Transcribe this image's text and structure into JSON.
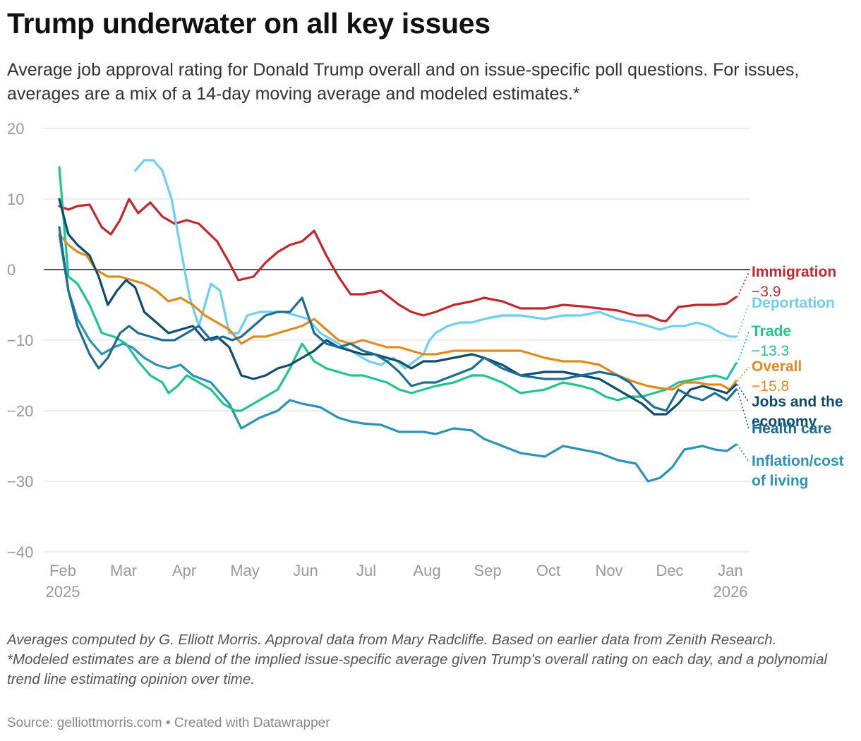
{
  "title": "Trump underwater on all key issues",
  "subtitle": "Average job approval rating for Donald Trump overall and on issue-specific poll questions. For issues, averages are a mix of a 14-day moving average and modeled estimates.*",
  "notes": {
    "line1": "Averages computed by G. Elliott Morris. Approval data from Mary Radcliffe. Based on earlier data from Zenith Research.",
    "line2": "*Modeled estimates are a blend of the implied issue-specific average given Trump's overall rating on each day, and a polynomial trend line estimating opinion over time."
  },
  "source": "Source: gelliottmorris.com • Created with Datawrapper",
  "chart_data": {
    "type": "line",
    "title": "Trump underwater on all key issues",
    "xlabel": "",
    "ylabel": "",
    "ylim": [
      -40,
      20
    ],
    "xlim": [
      0,
      11.2
    ],
    "y_ticks": [
      20,
      10,
      0,
      -10,
      -20,
      -30,
      -40
    ],
    "y_tick_labels": [
      "20",
      "10",
      "0",
      "−10",
      "−20",
      "−30",
      "−40"
    ],
    "x_ticks": [
      {
        "x": 0,
        "label": "Feb",
        "sublabel": "2025"
      },
      {
        "x": 1,
        "label": "Mar"
      },
      {
        "x": 2,
        "label": "Apr"
      },
      {
        "x": 3,
        "label": "May"
      },
      {
        "x": 4,
        "label": "Jun"
      },
      {
        "x": 5,
        "label": "Jul"
      },
      {
        "x": 6,
        "label": "Aug"
      },
      {
        "x": 7,
        "label": "Sep"
      },
      {
        "x": 8,
        "label": "Oct"
      },
      {
        "x": 9,
        "label": "Nov"
      },
      {
        "x": 10,
        "label": "Dec"
      },
      {
        "x": 11,
        "label": "Jan",
        "sublabel": "2026"
      }
    ],
    "x_unit": "months since Feb 1, 2025",
    "series": [
      {
        "name": "Inflation/cost of living",
        "label_lines": [
          "Inflation/cost",
          "of living"
        ],
        "final_value": null,
        "color": "#2a93b7",
        "x": [
          0,
          0.15,
          0.3,
          0.5,
          0.7,
          0.9,
          1.05,
          1.2,
          1.4,
          1.6,
          1.8,
          2.0,
          2.2,
          2.5,
          2.8,
          3.0,
          3.3,
          3.6,
          3.8,
          4.0,
          4.3,
          4.6,
          4.8,
          5.0,
          5.3,
          5.6,
          6.0,
          6.2,
          6.5,
          6.8,
          7.0,
          7.3,
          7.6,
          8.0,
          8.3,
          8.6,
          8.9,
          9.2,
          9.5,
          9.7,
          9.9,
          10.1,
          10.3,
          10.6,
          10.8,
          11.0,
          11.15
        ],
        "y": [
          5,
          -3,
          -7,
          -10,
          -12,
          -11,
          -10.5,
          -11,
          -12.5,
          -13.5,
          -14,
          -13.5,
          -15,
          -16,
          -19,
          -22.5,
          -21,
          -20,
          -18.5,
          -19,
          -19.5,
          -21,
          -21.5,
          -21.8,
          -22,
          -23,
          -23,
          -23.3,
          -22.5,
          -22.8,
          -24,
          -25,
          -26,
          -26.5,
          -25,
          -25.5,
          -26,
          -27,
          -27.5,
          -30,
          -29.5,
          -28,
          -25.5,
          -25,
          -25.5,
          -25.7,
          -24.8
        ]
      },
      {
        "name": "Immigration",
        "label_lines": [
          "Immigration"
        ],
        "final_value": "−3.9",
        "color": "#c1272d",
        "x": [
          0,
          0.15,
          0.3,
          0.5,
          0.7,
          0.85,
          1.0,
          1.15,
          1.3,
          1.5,
          1.7,
          1.9,
          2.1,
          2.3,
          2.6,
          2.8,
          2.95,
          3.2,
          3.4,
          3.6,
          3.8,
          4.0,
          4.2,
          4.4,
          4.6,
          4.8,
          5.0,
          5.3,
          5.6,
          5.8,
          6.0,
          6.2,
          6.5,
          6.8,
          7.0,
          7.3,
          7.6,
          8.0,
          8.3,
          8.6,
          8.9,
          9.2,
          9.5,
          9.7,
          9.9,
          10.0,
          10.2,
          10.5,
          10.8,
          11.0,
          11.15
        ],
        "y": [
          9,
          8.5,
          9,
          9.2,
          6,
          5,
          7,
          10,
          8,
          9.5,
          7.5,
          6.5,
          7,
          6.5,
          4,
          1,
          -1.5,
          -1,
          1,
          2.5,
          3.5,
          4,
          5.5,
          2,
          -1,
          -3.5,
          -3.5,
          -3,
          -5,
          -6,
          -6.5,
          -6,
          -5,
          -4.5,
          -4,
          -4.5,
          -5.5,
          -5.5,
          -5,
          -5.2,
          -5.5,
          -5.8,
          -6.5,
          -6.5,
          -7.2,
          -7.3,
          -5.3,
          -5,
          -5,
          -4.8,
          -3.9
        ]
      },
      {
        "name": "Deportation",
        "label_lines": [
          "Deportation"
        ],
        "final_value": null,
        "color": "#6ecff0",
        "x": [
          1.25,
          1.4,
          1.55,
          1.7,
          1.85,
          2.0,
          2.15,
          2.3,
          2.5,
          2.65,
          2.8,
          2.95,
          3.1,
          3.3,
          3.5,
          3.7,
          3.9,
          4.1,
          4.3,
          4.5,
          4.7,
          4.9,
          5.1,
          5.3,
          5.5,
          5.7,
          5.85,
          6.0,
          6.1,
          6.2,
          6.4,
          6.6,
          6.8,
          7.0,
          7.3,
          7.6,
          8.0,
          8.3,
          8.6,
          8.9,
          9.2,
          9.5,
          9.7,
          9.9,
          10.1,
          10.3,
          10.5,
          10.7,
          10.9,
          11.05,
          11.15
        ],
        "y": [
          14,
          15.5,
          15.5,
          14,
          10,
          3,
          -4,
          -8,
          -2,
          -3,
          -9,
          -9,
          -6.5,
          -6,
          -6,
          -6,
          -6.5,
          -7,
          -9,
          -10,
          -11,
          -12,
          -13,
          -13.5,
          -12.5,
          -14,
          -13,
          -12,
          -10,
          -9,
          -8,
          -7.5,
          -7.5,
          -7,
          -6.5,
          -6.5,
          -7,
          -6.5,
          -6.5,
          -6,
          -7,
          -7.5,
          -8,
          -8.5,
          -8,
          -8,
          -7.5,
          -8,
          -9,
          -9.5,
          -9.5
        ]
      },
      {
        "name": "Trade",
        "label_lines": [
          "Trade"
        ],
        "final_value": "−13.3",
        "color": "#1fc48e",
        "x": [
          0,
          0.15,
          0.3,
          0.5,
          0.7,
          0.9,
          1.1,
          1.3,
          1.5,
          1.7,
          1.8,
          1.95,
          2.1,
          2.3,
          2.5,
          2.7,
          2.9,
          3.0,
          3.2,
          3.4,
          3.6,
          3.8,
          4.0,
          4.2,
          4.4,
          4.6,
          4.8,
          5.0,
          5.2,
          5.4,
          5.6,
          5.8,
          6.0,
          6.2,
          6.5,
          6.8,
          7.0,
          7.3,
          7.6,
          8.0,
          8.3,
          8.6,
          8.8,
          9.0,
          9.2,
          9.4,
          9.6,
          9.8,
          10.0,
          10.2,
          10.5,
          10.8,
          11.0,
          11.15
        ],
        "y": [
          14.5,
          -1,
          -2,
          -5,
          -9,
          -9.5,
          -10.5,
          -13,
          -15,
          -16,
          -17.5,
          -16.5,
          -15,
          -16,
          -17,
          -19,
          -20,
          -20,
          -19,
          -18,
          -17,
          -14,
          -10.5,
          -13,
          -14,
          -14.5,
          -15,
          -15,
          -15.5,
          -16,
          -17,
          -17.5,
          -17,
          -16.5,
          -16,
          -15,
          -15,
          -16,
          -17.5,
          -17,
          -16,
          -16.5,
          -17,
          -18,
          -18.5,
          -18,
          -18,
          -17.5,
          -17,
          -16,
          -15.5,
          -15,
          -15.5,
          -13.3
        ]
      },
      {
        "name": "Overall",
        "label_lines": [
          "Overall"
        ],
        "final_value": "−15.8",
        "color": "#e38a1d",
        "x": [
          0,
          0.15,
          0.3,
          0.45,
          0.6,
          0.8,
          1.0,
          1.2,
          1.4,
          1.6,
          1.8,
          2.0,
          2.2,
          2.4,
          2.6,
          2.8,
          3.0,
          3.2,
          3.4,
          3.6,
          3.8,
          4.0,
          4.2,
          4.4,
          4.6,
          4.8,
          5.0,
          5.2,
          5.4,
          5.6,
          5.8,
          6.0,
          6.2,
          6.5,
          6.8,
          7.0,
          7.3,
          7.6,
          8.0,
          8.3,
          8.6,
          8.9,
          9.2,
          9.5,
          9.7,
          9.9,
          10.1,
          10.3,
          10.5,
          10.7,
          10.9,
          11.05,
          11.15
        ],
        "y": [
          5,
          3.5,
          2.5,
          2,
          0,
          -1,
          -1,
          -1.5,
          -2,
          -3,
          -4.5,
          -4,
          -5,
          -6.5,
          -7.5,
          -8.5,
          -10.5,
          -9.5,
          -9.5,
          -9,
          -8.5,
          -8,
          -7,
          -8.5,
          -10,
          -10.5,
          -10,
          -10.5,
          -11,
          -11,
          -11.5,
          -12,
          -12,
          -11.5,
          -11.5,
          -11.5,
          -11.5,
          -11.5,
          -12.5,
          -13,
          -13,
          -13.5,
          -15,
          -16,
          -16.5,
          -16.8,
          -17,
          -16,
          -16,
          -16.3,
          -16.3,
          -17,
          -15.8
        ]
      },
      {
        "name": "Jobs and the economy",
        "label_lines": [
          "Jobs and the",
          "economy"
        ],
        "final_value": null,
        "color": "#0e4c6e",
        "x": [
          0,
          0.15,
          0.3,
          0.5,
          0.65,
          0.8,
          0.95,
          1.1,
          1.25,
          1.4,
          1.6,
          1.8,
          2.0,
          2.2,
          2.4,
          2.6,
          2.8,
          3.0,
          3.2,
          3.4,
          3.6,
          3.8,
          4.0,
          4.2,
          4.4,
          4.6,
          4.8,
          5.0,
          5.2,
          5.4,
          5.6,
          5.8,
          6.0,
          6.2,
          6.5,
          6.8,
          7.0,
          7.3,
          7.6,
          8.0,
          8.3,
          8.6,
          8.9,
          9.2,
          9.4,
          9.6,
          9.8,
          10.0,
          10.2,
          10.4,
          10.6,
          10.8,
          11.0,
          11.15
        ],
        "y": [
          10,
          5,
          3.5,
          2,
          -1,
          -5,
          -3,
          -1.5,
          -2.5,
          -6,
          -7.5,
          -9,
          -8.5,
          -8,
          -10,
          -9.5,
          -11,
          -15,
          -15.5,
          -15,
          -14,
          -13.5,
          -12.5,
          -11.5,
          -10,
          -11,
          -11.5,
          -12,
          -12,
          -12.5,
          -13,
          -14,
          -13,
          -13,
          -12.5,
          -12,
          -12.5,
          -13.5,
          -15,
          -14.5,
          -14.5,
          -15,
          -15.5,
          -17,
          -18,
          -19,
          -20.5,
          -20.5,
          -19,
          -17,
          -16.5,
          -17,
          -17.5,
          -16.3
        ]
      },
      {
        "name": "Health care",
        "label_lines": [
          "Health care"
        ],
        "final_value": null,
        "color": "#1c6c94",
        "x": [
          0,
          0.15,
          0.3,
          0.5,
          0.65,
          0.8,
          1.0,
          1.15,
          1.3,
          1.5,
          1.7,
          1.9,
          2.1,
          2.3,
          2.5,
          2.7,
          2.85,
          3.0,
          3.2,
          3.4,
          3.6,
          3.8,
          4.0,
          4.2,
          4.4,
          4.6,
          4.8,
          5.0,
          5.2,
          5.4,
          5.6,
          5.8,
          6.0,
          6.2,
          6.5,
          6.8,
          7.0,
          7.3,
          7.6,
          8.0,
          8.3,
          8.6,
          8.9,
          9.2,
          9.4,
          9.6,
          9.8,
          10.0,
          10.2,
          10.4,
          10.6,
          10.8,
          11.0,
          11.15
        ],
        "y": [
          6,
          -3,
          -8,
          -12,
          -14,
          -12.5,
          -9,
          -8,
          -9,
          -9.5,
          -10,
          -10,
          -9,
          -8,
          -10,
          -9.5,
          -10,
          -9.5,
          -8,
          -6.5,
          -6,
          -6,
          -4,
          -9,
          -10.5,
          -11,
          -10.5,
          -11.5,
          -12,
          -13,
          -14.5,
          -16.5,
          -16,
          -16,
          -15,
          -14,
          -12.5,
          -14,
          -15,
          -15.5,
          -15.5,
          -15,
          -14.5,
          -15,
          -16,
          -18,
          -19.5,
          -20,
          -17,
          -18,
          -18.5,
          -17.5,
          -18.5,
          -17
        ]
      }
    ]
  }
}
